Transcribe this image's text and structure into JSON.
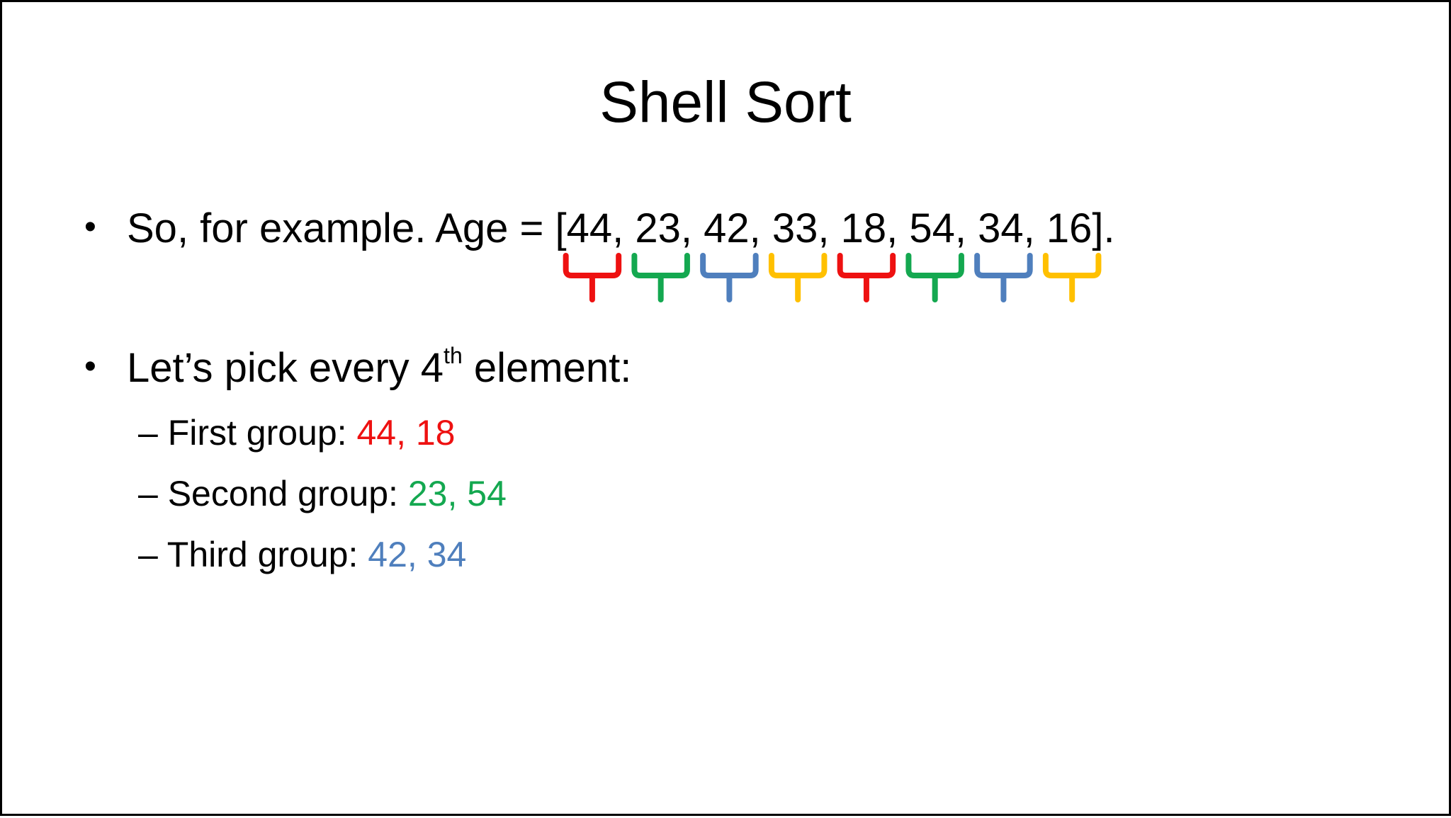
{
  "title": "Shell Sort",
  "bullets": {
    "example": {
      "prefix": "So, for example. Age = ",
      "open": "[",
      "values": [
        "44",
        "23",
        "42",
        "33",
        "18",
        "54",
        "34",
        "16"
      ],
      "separator": ", ",
      "close": "]."
    },
    "pick": {
      "before": "Let’s pick every 4",
      "ordinal": "th",
      "after": " element:"
    }
  },
  "groups": [
    {
      "dash": "– ",
      "label": "First group: ",
      "a": "44",
      "comma": ", ",
      "b": "18",
      "color": "#ee1111"
    },
    {
      "dash": "– ",
      "label": "Second group: ",
      "a": "23",
      "comma": ", ",
      "b": "54",
      "color": "#14a850"
    },
    {
      "dash": "– ",
      "label": "Third group: ",
      "a": "42",
      "comma": ", ",
      "b": "34",
      "color": "#4f7fbd"
    }
  ],
  "brace_colors": [
    "#ee1111",
    "#14a850",
    "#4f7fbd",
    "#ffc000",
    "#ee1111",
    "#14a850",
    "#4f7fbd",
    "#ffc000"
  ],
  "bullet_glyph": "•"
}
